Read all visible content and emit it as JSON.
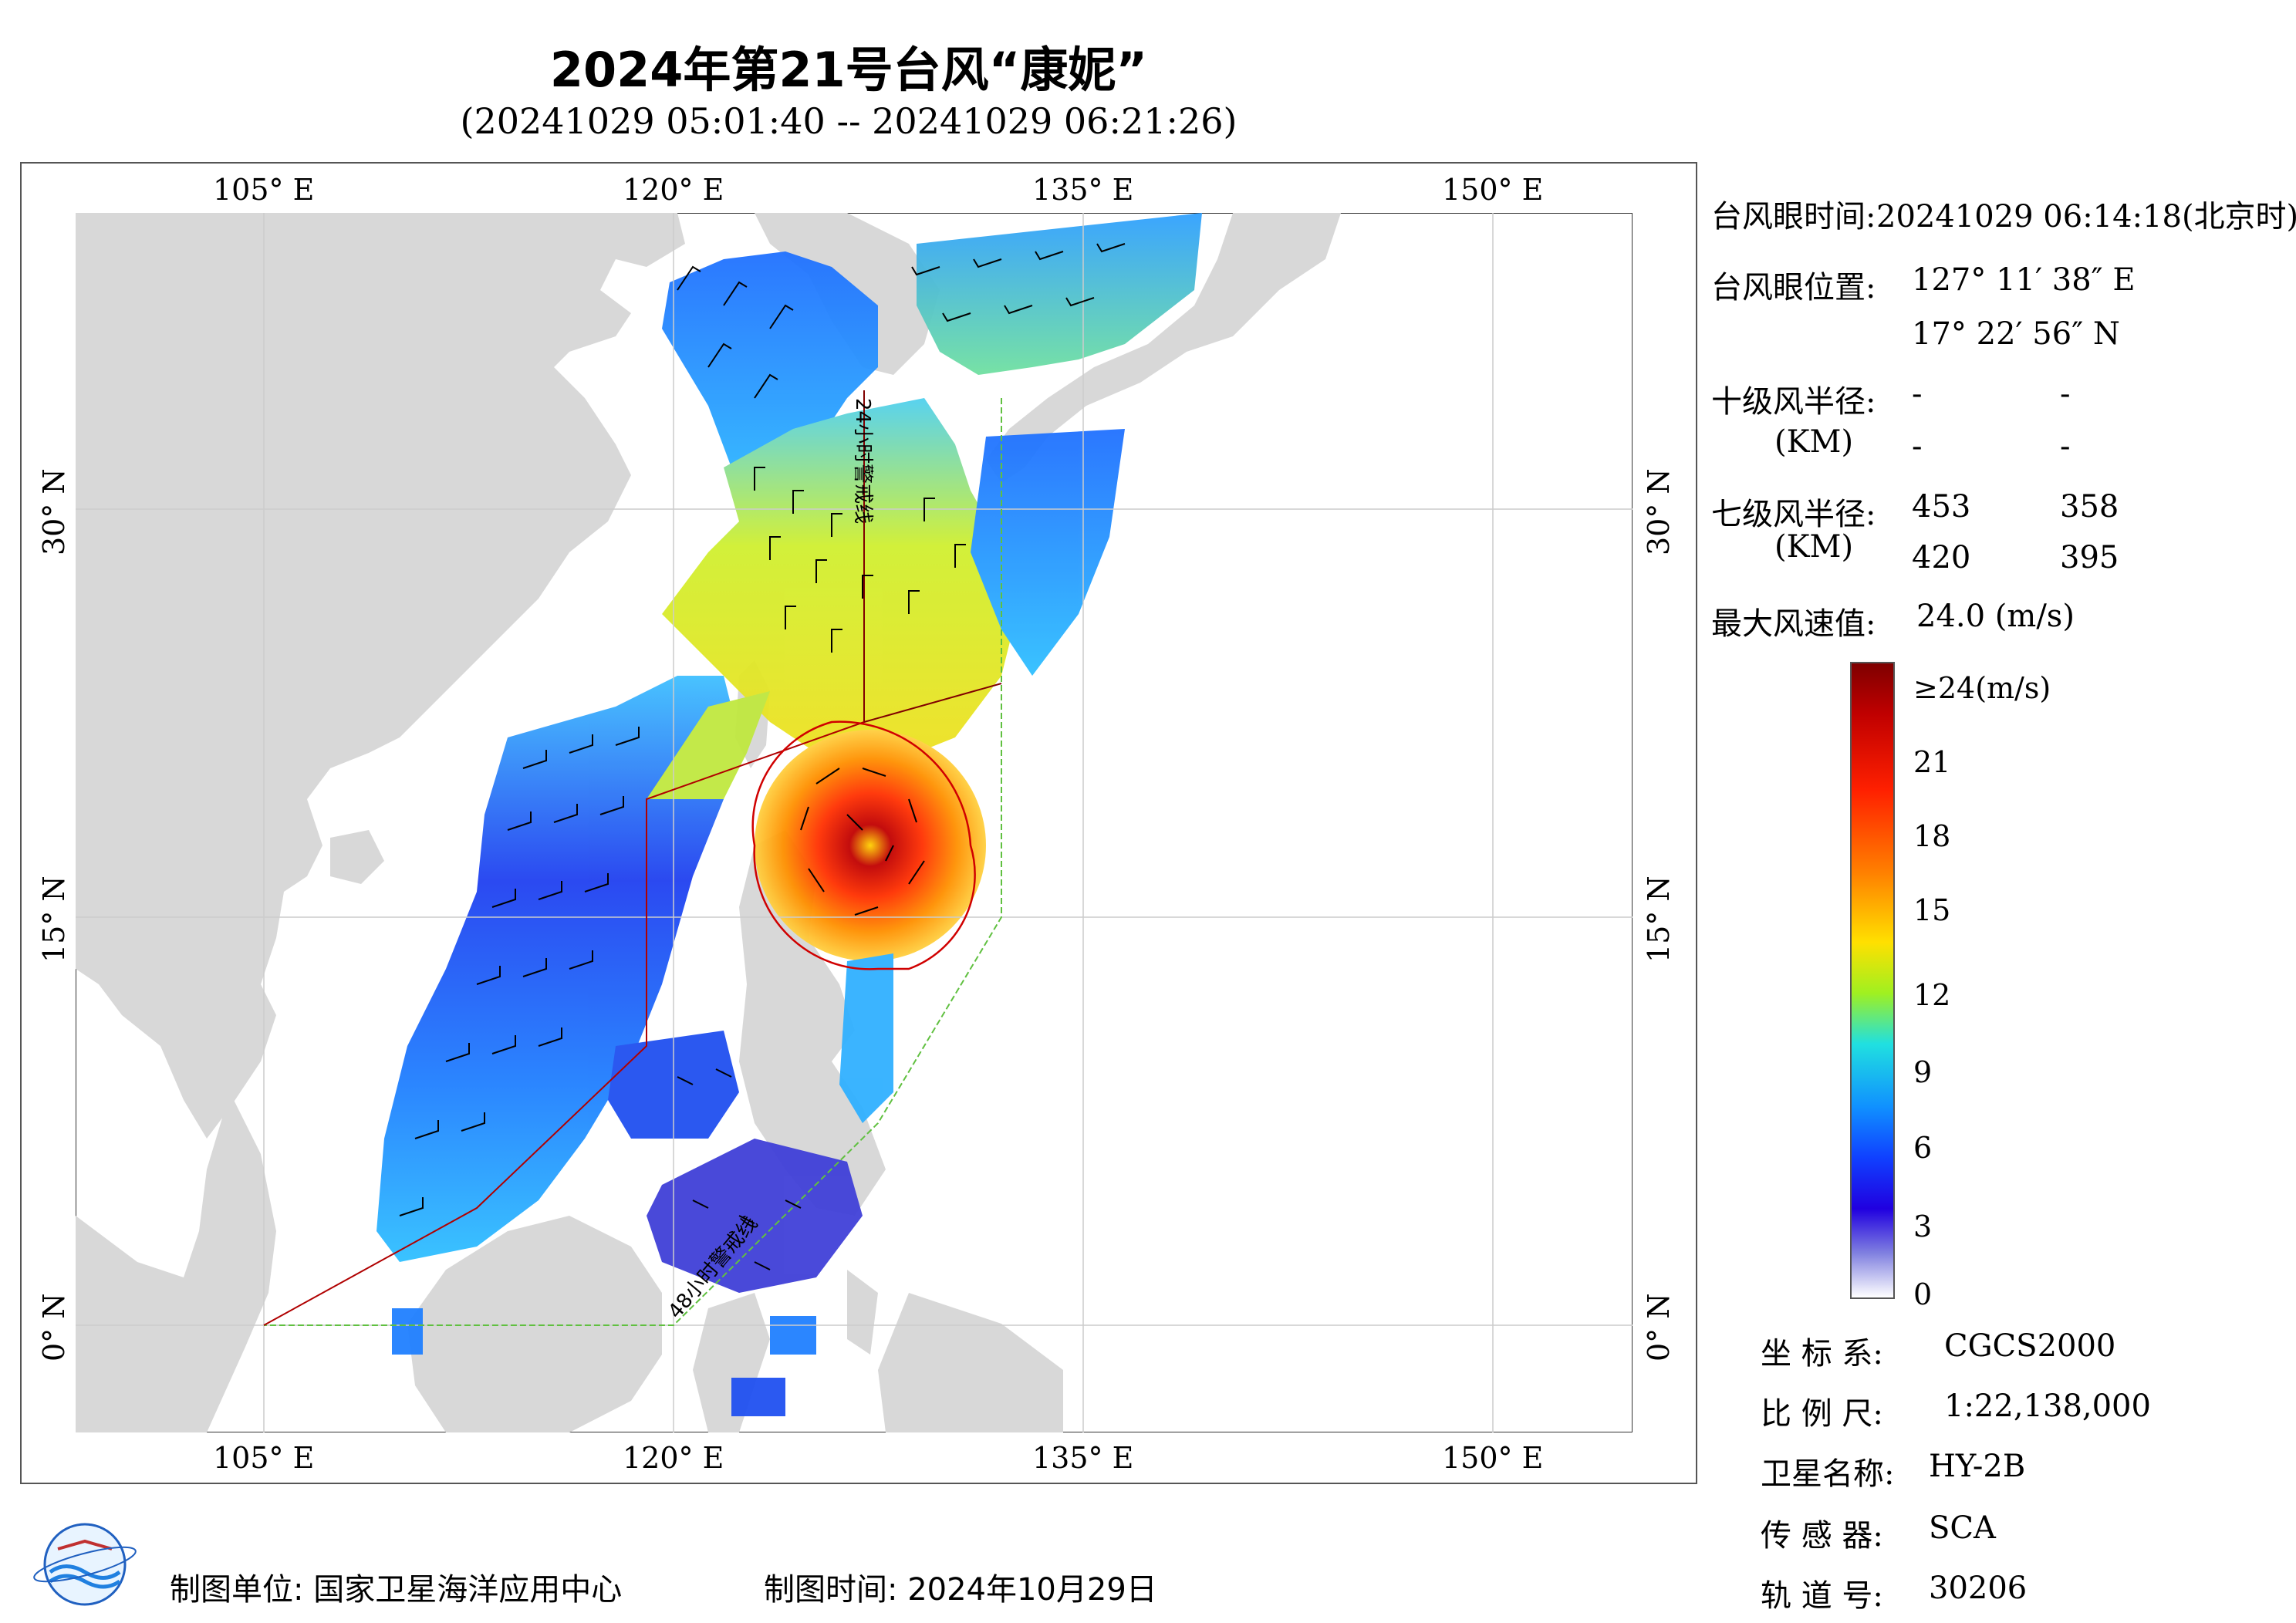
{
  "title": "2024年第21号台风“康妮”",
  "subtitle": "(20241029 05:01:40 -- 20241029 06:21:26)",
  "map": {
    "lon_ticks_top": [
      "105° E",
      "120° E",
      "135° E",
      "150° E"
    ],
    "lon_ticks_bottom": [
      "105° E",
      "120° E",
      "135° E",
      "150° E"
    ],
    "lat_ticks_left": [
      "30° N",
      "15° N",
      "0° N"
    ],
    "lat_ticks_right": [
      "30° N",
      "15° N",
      "0° N"
    ],
    "warning_line_24h": "24小时警戒线",
    "warning_line_48h": "48小时警戒线",
    "land_color": "#d8d8d8",
    "ocean_color": "#ffffff",
    "typhoon_eye": {
      "lon": 127.19,
      "lat": 17.38
    }
  },
  "info": {
    "eye_time_label": "台风眼时间:",
    "eye_time_value": "20241029 06:14:18(北京时)",
    "eye_pos_label": "台风眼位置:",
    "eye_lon": "127° 11′ 38″ E",
    "eye_lat": "17° 22′ 56″ N",
    "r10_label": "十级风半径:",
    "r10_unit": "(KM)",
    "r10_values": [
      "-",
      "-",
      "-",
      "-"
    ],
    "r7_label": "七级风半径:",
    "r7_unit": "(KM)",
    "r7_values": [
      "453",
      "358",
      "420",
      "395"
    ],
    "max_wind_label": "最大风速值:",
    "max_wind_value": "24.0 (m/s)"
  },
  "legend": {
    "labels": [
      "≥24(m/s)",
      "21",
      "18",
      "15",
      "12",
      "9",
      "6",
      "3",
      "0"
    ]
  },
  "meta": {
    "crs_label": "坐 标 系:",
    "crs_value": "CGCS2000",
    "scale_label": "比 例 尺:",
    "scale_value": "1:22,138,000",
    "sat_label": "卫星名称:",
    "sat_value": "HY-2B",
    "sensor_label": "传 感 器:",
    "sensor_value": "SCA",
    "orbit_label": "轨 道 号:",
    "orbit_value": "30206"
  },
  "footer": {
    "producer": "制图单位: 国家卫星海洋应用中心",
    "date": "制图时间:  2024年10月29日"
  }
}
